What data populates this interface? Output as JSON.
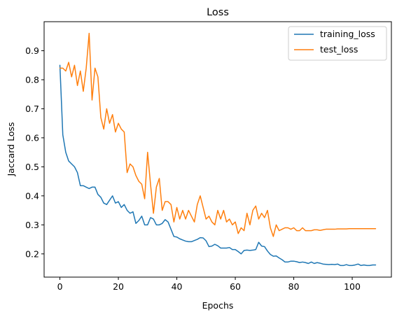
{
  "chart_data": {
    "type": "line",
    "title": "Loss",
    "xlabel": "Epochs",
    "ylabel": "Jaccard Loss",
    "xlim": [
      -5.4,
      113.4
    ],
    "ylim": [
      0.12,
      1.0
    ],
    "xticks": [
      0,
      20,
      40,
      60,
      80,
      100
    ],
    "yticks": [
      0.2,
      0.3,
      0.4,
      0.5,
      0.6,
      0.7,
      0.8,
      0.9
    ],
    "grid": false,
    "legend_position": "top-right",
    "series": [
      {
        "name": "training_loss",
        "color": "#1f77b4",
        "values": [
          0.85,
          0.61,
          0.55,
          0.52,
          0.51,
          0.5,
          0.48,
          0.435,
          0.435,
          0.43,
          0.425,
          0.43,
          0.43,
          0.405,
          0.395,
          0.375,
          0.37,
          0.385,
          0.4,
          0.375,
          0.38,
          0.36,
          0.37,
          0.35,
          0.34,
          0.345,
          0.305,
          0.315,
          0.33,
          0.3,
          0.3,
          0.325,
          0.32,
          0.3,
          0.3,
          0.305,
          0.318,
          0.31,
          0.285,
          0.26,
          0.258,
          0.252,
          0.248,
          0.244,
          0.242,
          0.242,
          0.246,
          0.25,
          0.256,
          0.255,
          0.245,
          0.225,
          0.227,
          0.233,
          0.228,
          0.22,
          0.22,
          0.22,
          0.222,
          0.215,
          0.215,
          0.208,
          0.2,
          0.212,
          0.213,
          0.212,
          0.213,
          0.215,
          0.24,
          0.227,
          0.225,
          0.21,
          0.198,
          0.192,
          0.193,
          0.186,
          0.18,
          0.172,
          0.172,
          0.175,
          0.175,
          0.173,
          0.17,
          0.172,
          0.17,
          0.167,
          0.172,
          0.167,
          0.17,
          0.168,
          0.165,
          0.164,
          0.163,
          0.164,
          0.163,
          0.165,
          0.16,
          0.16,
          0.163,
          0.16,
          0.16,
          0.162,
          0.165,
          0.16,
          0.162,
          0.16,
          0.16,
          0.162,
          0.162
        ]
      },
      {
        "name": "test_loss",
        "color": "#ff7f0e",
        "values": [
          0.84,
          0.84,
          0.83,
          0.86,
          0.81,
          0.85,
          0.78,
          0.83,
          0.76,
          0.84,
          0.96,
          0.73,
          0.84,
          0.81,
          0.67,
          0.63,
          0.7,
          0.65,
          0.68,
          0.62,
          0.65,
          0.63,
          0.62,
          0.48,
          0.51,
          0.5,
          0.47,
          0.45,
          0.44,
          0.39,
          0.55,
          0.44,
          0.34,
          0.43,
          0.46,
          0.35,
          0.38,
          0.38,
          0.37,
          0.31,
          0.36,
          0.32,
          0.35,
          0.32,
          0.35,
          0.33,
          0.31,
          0.37,
          0.4,
          0.36,
          0.32,
          0.33,
          0.31,
          0.3,
          0.35,
          0.32,
          0.35,
          0.31,
          0.32,
          0.3,
          0.31,
          0.27,
          0.29,
          0.28,
          0.34,
          0.3,
          0.35,
          0.365,
          0.32,
          0.34,
          0.325,
          0.35,
          0.29,
          0.26,
          0.3,
          0.28,
          0.285,
          0.29,
          0.29,
          0.285,
          0.29,
          0.28,
          0.28,
          0.29,
          0.28,
          0.28,
          0.28,
          0.283,
          0.283,
          0.281,
          0.283,
          0.285,
          0.285,
          0.285,
          0.285,
          0.286,
          0.286,
          0.286,
          0.286,
          0.287,
          0.287,
          0.287,
          0.287,
          0.287,
          0.287,
          0.287,
          0.287,
          0.287,
          0.287
        ]
      }
    ]
  }
}
